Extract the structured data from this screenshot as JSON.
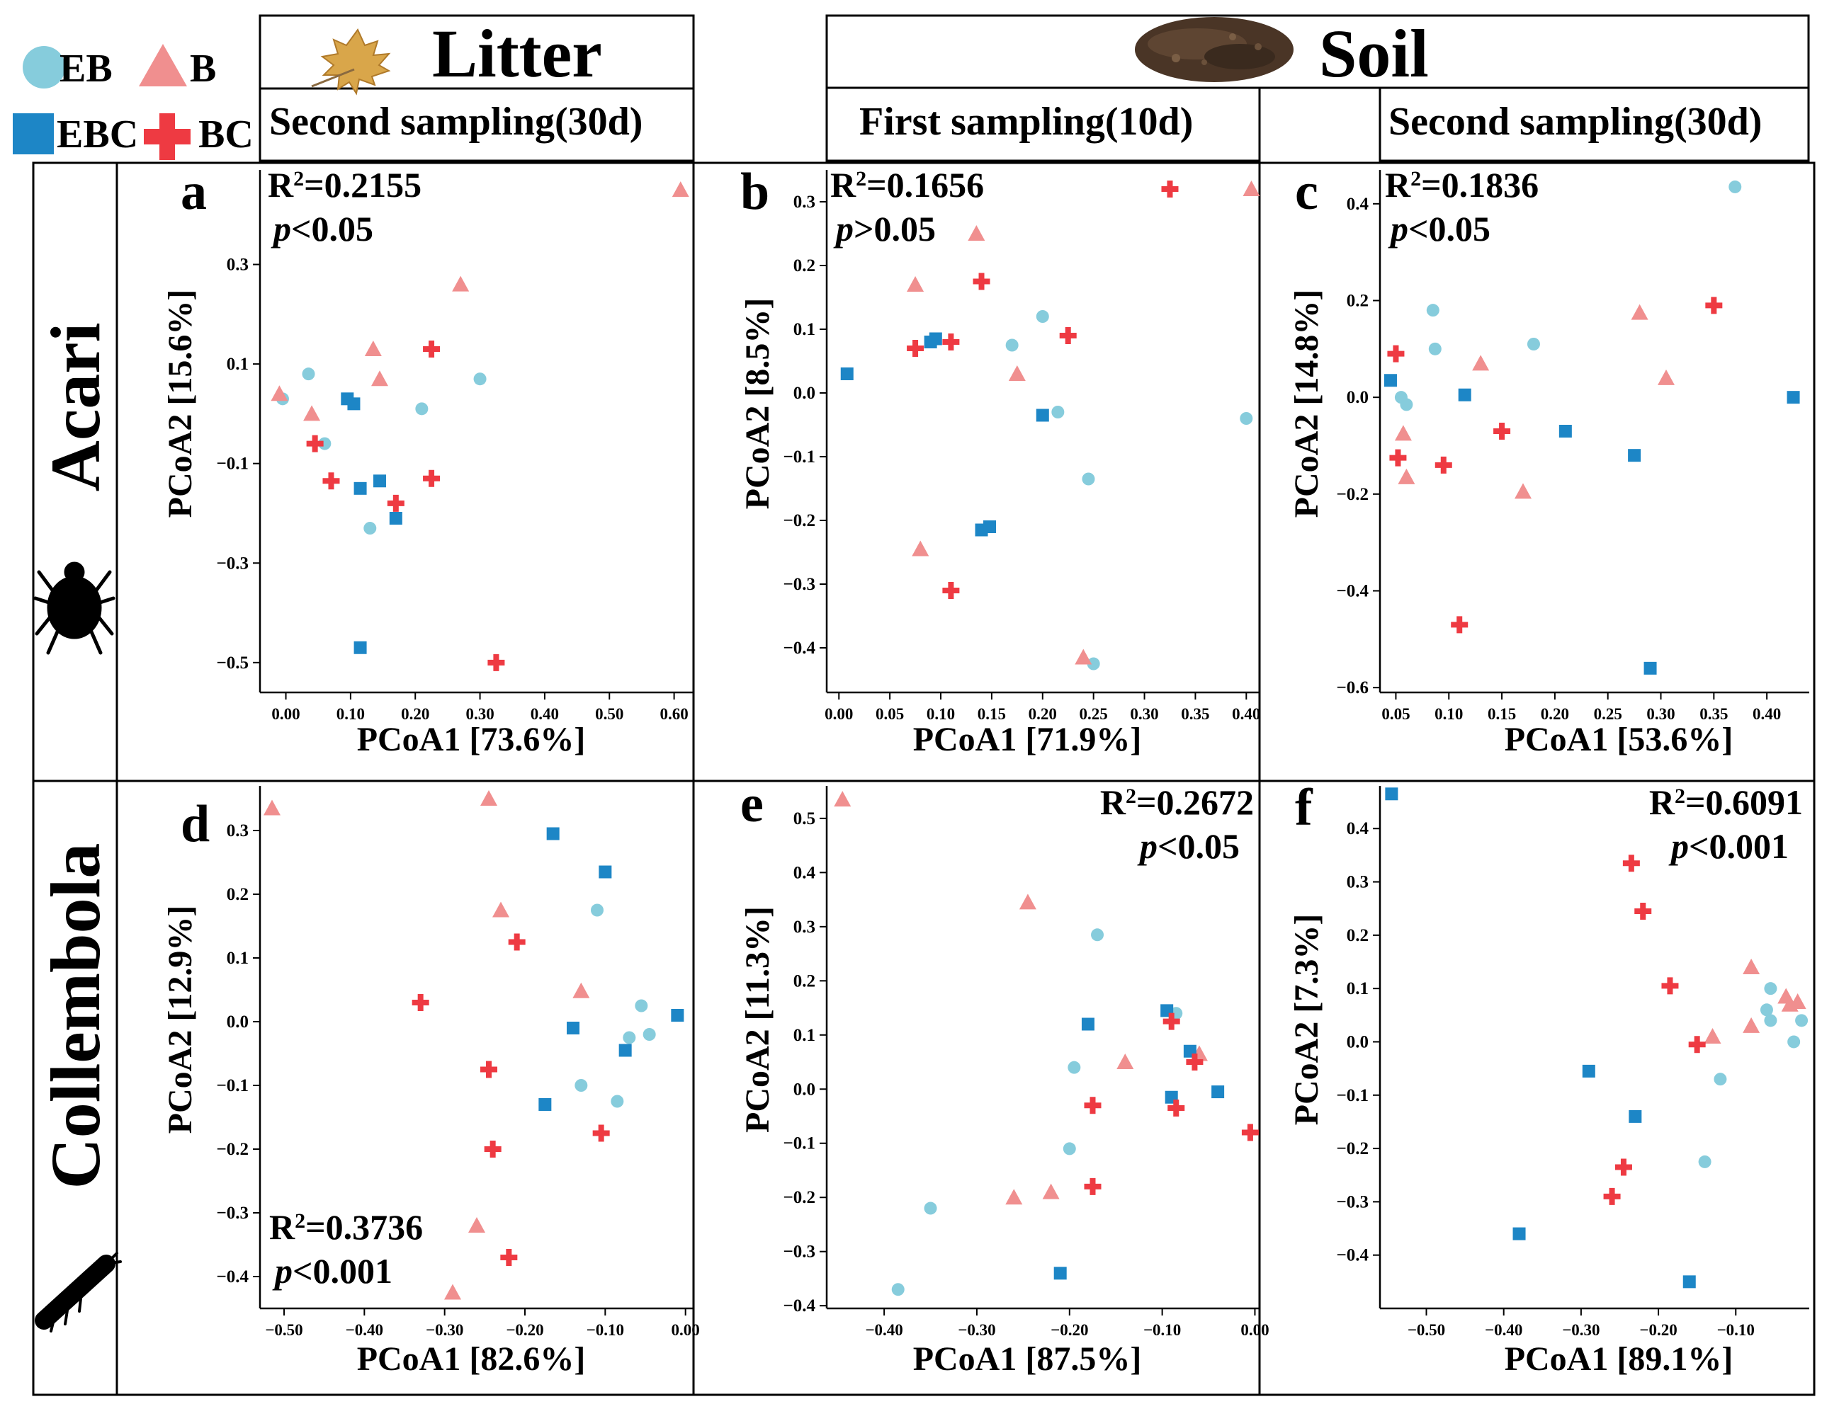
{
  "legend": {
    "items": [
      {
        "label": "EB",
        "marker": "circle",
        "color": "#86ccdc"
      },
      {
        "label": "B",
        "marker": "triangle",
        "color": "#f08f8f"
      },
      {
        "label": "EBC",
        "marker": "square",
        "color": "#1d86c6"
      },
      {
        "label": "BC",
        "marker": "cross",
        "color": "#ee3a42"
      }
    ]
  },
  "headers": {
    "litter": "Litter",
    "soil": "Soil",
    "litter_second": "Second sampling(30d)",
    "soil_first": "First sampling(10d)",
    "soil_second": "Second sampling(30d)"
  },
  "rows": {
    "acari": "Acari",
    "collembola": "Collembola"
  },
  "colors": {
    "EB": "#86ccdc",
    "B": "#f08f8f",
    "EBC": "#1d86c6",
    "BC": "#ee3a42"
  },
  "chart_data": [
    {
      "id": "a",
      "type": "scatter",
      "letter": "a",
      "stats": {
        "r2": "0.2155",
        "p_sym": "<",
        "p_val": "0.05"
      },
      "xlabel": "PCoA1 [73.6%]",
      "ylabel": "PCoA2 [15.6%]",
      "xlim": [
        -0.04,
        0.63
      ],
      "ylim": [
        -0.56,
        0.49
      ],
      "xticks": [
        0.0,
        0.1,
        0.2,
        0.3,
        0.4,
        0.5,
        0.6
      ],
      "xtick_labels": [
        "0.00",
        "0.10",
        "0.20",
        "0.30",
        "0.40",
        "0.50",
        "0.60"
      ],
      "yticks": [
        0.3,
        0.1,
        -0.1,
        -0.3,
        -0.5
      ],
      "ytick_labels": [
        "0.3",
        "0.1",
        "−0.1",
        "−0.3",
        "−0.5"
      ],
      "series": [
        {
          "name": "EB",
          "points": [
            [
              -0.005,
              0.03
            ],
            [
              0.035,
              0.08
            ],
            [
              0.06,
              -0.06
            ],
            [
              0.13,
              -0.23
            ],
            [
              0.21,
              0.01
            ],
            [
              0.3,
              0.07
            ]
          ]
        },
        {
          "name": "B",
          "points": [
            [
              -0.01,
              0.04
            ],
            [
              0.04,
              0.0
            ],
            [
              0.135,
              0.13
            ],
            [
              0.145,
              0.07
            ],
            [
              0.27,
              0.26
            ],
            [
              0.61,
              0.45
            ]
          ]
        },
        {
          "name": "EBC",
          "points": [
            [
              0.095,
              0.03
            ],
            [
              0.105,
              0.02
            ],
            [
              0.115,
              -0.15
            ],
            [
              0.145,
              -0.135
            ],
            [
              0.17,
              -0.21
            ],
            [
              0.115,
              -0.47
            ]
          ]
        },
        {
          "name": "BC",
          "points": [
            [
              0.045,
              -0.06
            ],
            [
              0.07,
              -0.135
            ],
            [
              0.17,
              -0.18
            ],
            [
              0.225,
              -0.13
            ],
            [
              0.225,
              0.13
            ],
            [
              0.325,
              -0.5
            ]
          ]
        }
      ]
    },
    {
      "id": "b",
      "type": "scatter",
      "letter": "b",
      "stats": {
        "r2": "0.1656",
        "p_sym": ">",
        "p_val": "0.05"
      },
      "xlabel": "PCoA1 [71.9%]",
      "ylabel": "PCoA2 [8.5%]",
      "xlim": [
        -0.012,
        0.413
      ],
      "ylim": [
        -0.47,
        0.35
      ],
      "xticks": [
        0.0,
        0.05,
        0.1,
        0.15,
        0.2,
        0.25,
        0.3,
        0.35,
        0.4
      ],
      "xtick_labels": [
        "0.00",
        "0.05",
        "0.10",
        "0.15",
        "0.20",
        "0.25",
        "0.30",
        "0.35",
        "0.40"
      ],
      "yticks": [
        0.3,
        0.2,
        0.1,
        0.0,
        -0.1,
        -0.2,
        -0.3,
        -0.4
      ],
      "ytick_labels": [
        "0.3",
        "0.2",
        "0.1",
        "0.0",
        "−0.1",
        "−0.2",
        "−0.3",
        "−0.4"
      ],
      "series": [
        {
          "name": "EB",
          "points": [
            [
              0.17,
              0.075
            ],
            [
              0.2,
              0.12
            ],
            [
              0.215,
              -0.03
            ],
            [
              0.245,
              -0.135
            ],
            [
              0.25,
              -0.425
            ],
            [
              0.4,
              -0.04
            ]
          ]
        },
        {
          "name": "B",
          "points": [
            [
              0.075,
              0.17
            ],
            [
              0.08,
              -0.245
            ],
            [
              0.135,
              0.25
            ],
            [
              0.175,
              0.03
            ],
            [
              0.24,
              -0.415
            ],
            [
              0.405,
              0.32
            ]
          ]
        },
        {
          "name": "EBC",
          "points": [
            [
              0.008,
              0.03
            ],
            [
              0.09,
              0.08
            ],
            [
              0.095,
              0.085
            ],
            [
              0.14,
              -0.215
            ],
            [
              0.148,
              -0.21
            ],
            [
              0.2,
              -0.035
            ]
          ]
        },
        {
          "name": "BC",
          "points": [
            [
              0.075,
              0.07
            ],
            [
              0.11,
              0.08
            ],
            [
              0.14,
              0.175
            ],
            [
              0.225,
              0.09
            ],
            [
              0.325,
              0.32
            ],
            [
              0.11,
              -0.31
            ]
          ]
        }
      ]
    },
    {
      "id": "c",
      "type": "scatter",
      "letter": "c",
      "stats": {
        "r2": "0.1836",
        "p_sym": "<",
        "p_val": "0.05"
      },
      "xlabel": "PCoA1 [53.6%]",
      "ylabel": "PCoA2 [14.8%]",
      "xlim": [
        0.035,
        0.44
      ],
      "ylim": [
        -0.61,
        0.47
      ],
      "xticks": [
        0.05,
        0.1,
        0.15,
        0.2,
        0.25,
        0.3,
        0.35,
        0.4
      ],
      "xtick_labels": [
        "0.05",
        "0.10",
        "0.15",
        "0.20",
        "0.25",
        "0.30",
        "0.35",
        "0.40"
      ],
      "yticks": [
        0.4,
        0.2,
        0.0,
        -0.2,
        -0.4,
        -0.6
      ],
      "ytick_labels": [
        "0.4",
        "0.2",
        "0.0",
        "−0.2",
        "−0.4",
        "−0.6"
      ],
      "series": [
        {
          "name": "EB",
          "points": [
            [
              0.055,
              0.0
            ],
            [
              0.06,
              -0.015
            ],
            [
              0.085,
              0.18
            ],
            [
              0.087,
              0.1
            ],
            [
              0.18,
              0.11
            ],
            [
              0.37,
              0.435
            ]
          ]
        },
        {
          "name": "B",
          "points": [
            [
              0.057,
              -0.075
            ],
            [
              0.06,
              -0.165
            ],
            [
              0.13,
              0.07
            ],
            [
              0.17,
              -0.195
            ],
            [
              0.28,
              0.175
            ],
            [
              0.305,
              0.04
            ]
          ]
        },
        {
          "name": "EBC",
          "points": [
            [
              0.045,
              0.035
            ],
            [
              0.115,
              0.005
            ],
            [
              0.21,
              -0.07
            ],
            [
              0.275,
              -0.12
            ],
            [
              0.29,
              -0.56
            ],
            [
              0.425,
              0.0
            ]
          ]
        },
        {
          "name": "BC",
          "points": [
            [
              0.05,
              0.09
            ],
            [
              0.052,
              -0.125
            ],
            [
              0.095,
              -0.14
            ],
            [
              0.15,
              -0.07
            ],
            [
              0.35,
              0.19
            ],
            [
              0.11,
              -0.47
            ]
          ]
        }
      ]
    },
    {
      "id": "d",
      "type": "scatter",
      "letter": "d",
      "stats": {
        "r2": "0.3736",
        "p_sym": "<",
        "p_val": "0.001"
      },
      "xlabel": "PCoA1 [82.6%]",
      "ylabel": "PCoA2 [12.9%]",
      "xlim": [
        -0.53,
        0.01
      ],
      "ylim": [
        -0.45,
        0.37
      ],
      "xticks": [
        -0.5,
        -0.4,
        -0.3,
        -0.2,
        -0.1,
        0.0
      ],
      "xtick_labels": [
        "−0.50",
        "−0.40",
        "−0.30",
        "−0.20",
        "−0.10",
        "0.00"
      ],
      "yticks": [
        0.3,
        0.2,
        0.1,
        0.0,
        -0.1,
        -0.2,
        -0.3,
        -0.4
      ],
      "ytick_labels": [
        "0.3",
        "0.2",
        "0.1",
        "0.0",
        "−0.1",
        "−0.2",
        "−0.3",
        "−0.4"
      ],
      "series": [
        {
          "name": "EB",
          "points": [
            [
              -0.11,
              0.175
            ],
            [
              -0.13,
              -0.1
            ],
            [
              -0.085,
              -0.125
            ],
            [
              -0.07,
              -0.025
            ],
            [
              -0.055,
              0.025
            ],
            [
              -0.045,
              -0.02
            ]
          ]
        },
        {
          "name": "B",
          "points": [
            [
              -0.515,
              0.335
            ],
            [
              -0.245,
              0.35
            ],
            [
              -0.23,
              0.175
            ],
            [
              -0.13,
              0.048
            ],
            [
              -0.26,
              -0.32
            ],
            [
              -0.29,
              -0.425
            ]
          ]
        },
        {
          "name": "EBC",
          "points": [
            [
              -0.165,
              0.295
            ],
            [
              -0.1,
              0.235
            ],
            [
              -0.14,
              -0.01
            ],
            [
              -0.175,
              -0.13
            ],
            [
              -0.075,
              -0.045
            ],
            [
              -0.01,
              0.01
            ]
          ]
        },
        {
          "name": "BC",
          "points": [
            [
              -0.33,
              0.03
            ],
            [
              -0.21,
              0.125
            ],
            [
              -0.245,
              -0.075
            ],
            [
              -0.24,
              -0.2
            ],
            [
              -0.105,
              -0.175
            ],
            [
              -0.22,
              -0.37
            ]
          ]
        }
      ]
    },
    {
      "id": "e",
      "type": "scatter",
      "letter": "e",
      "stats": {
        "r2": "0.2672",
        "p_sym": "<",
        "p_val": "0.05"
      },
      "xlabel": "PCoA1 [87.5%]",
      "ylabel": "PCoA2 [11.3%]",
      "xlim": [
        -0.462,
        0.005
      ],
      "ylim": [
        -0.405,
        0.56
      ],
      "xticks": [
        -0.4,
        -0.3,
        -0.2,
        -0.1,
        0.0
      ],
      "xtick_labels": [
        "−0.40",
        "−0.30",
        "−0.20",
        "−0.10",
        "0.00"
      ],
      "yticks": [
        0.5,
        0.4,
        0.3,
        0.2,
        0.1,
        0.0,
        -0.1,
        -0.2,
        -0.3,
        -0.4
      ],
      "ytick_labels": [
        "0.5",
        "0.4",
        "0.3",
        "0.2",
        "0.1",
        "0.0",
        "−0.1",
        "−0.2",
        "−0.3",
        "−0.4"
      ],
      "series": [
        {
          "name": "EB",
          "points": [
            [
              -0.17,
              0.285
            ],
            [
              -0.195,
              0.04
            ],
            [
              -0.2,
              -0.11
            ],
            [
              -0.35,
              -0.22
            ],
            [
              -0.385,
              -0.37
            ],
            [
              -0.085,
              0.14
            ]
          ]
        },
        {
          "name": "B",
          "points": [
            [
              -0.445,
              0.535
            ],
            [
              -0.245,
              0.345
            ],
            [
              -0.14,
              0.05
            ],
            [
              -0.06,
              0.065
            ],
            [
              -0.22,
              -0.19
            ],
            [
              -0.26,
              -0.2
            ]
          ]
        },
        {
          "name": "EBC",
          "points": [
            [
              -0.18,
              0.12
            ],
            [
              -0.095,
              0.145
            ],
            [
              -0.07,
              0.07
            ],
            [
              -0.09,
              -0.015
            ],
            [
              -0.04,
              -0.005
            ],
            [
              -0.21,
              -0.34
            ]
          ]
        },
        {
          "name": "BC",
          "points": [
            [
              -0.09,
              0.125
            ],
            [
              -0.065,
              0.05
            ],
            [
              -0.085,
              -0.035
            ],
            [
              -0.175,
              -0.03
            ],
            [
              -0.175,
              -0.18
            ],
            [
              -0.005,
              -0.08
            ]
          ]
        }
      ]
    },
    {
      "id": "f",
      "type": "scatter",
      "letter": "f",
      "stats": {
        "r2": "0.6091",
        "p_sym": "<",
        "p_val": "0.001"
      },
      "xlabel": "PCoA1 [89.1%]",
      "ylabel": "PCoA2 [7.3%]",
      "xlim": [
        -0.56,
        -0.005
      ],
      "ylim": [
        -0.5,
        0.48
      ],
      "xticks": [
        -0.5,
        -0.4,
        -0.3,
        -0.2,
        -0.1
      ],
      "xtick_labels": [
        "−0.50",
        "−0.40",
        "−0.30",
        "−0.20",
        "−0.10"
      ],
      "yticks": [
        0.4,
        0.3,
        0.2,
        0.1,
        0.0,
        -0.1,
        -0.2,
        -0.3,
        -0.4
      ],
      "ytick_labels": [
        "0.4",
        "0.3",
        "0.2",
        "0.1",
        "0.0",
        "−0.1",
        "−0.2",
        "−0.3",
        "−0.4"
      ],
      "series": [
        {
          "name": "EB",
          "points": [
            [
              -0.055,
              0.1
            ],
            [
              -0.06,
              0.06
            ],
            [
              -0.055,
              0.04
            ],
            [
              -0.015,
              0.04
            ],
            [
              -0.025,
              0.0
            ],
            [
              -0.12,
              -0.07
            ],
            [
              -0.14,
              -0.225
            ]
          ]
        },
        {
          "name": "B",
          "points": [
            [
              -0.08,
              0.14
            ],
            [
              -0.035,
              0.085
            ],
            [
              -0.03,
              0.07
            ],
            [
              -0.02,
              0.075
            ],
            [
              -0.08,
              0.03
            ],
            [
              -0.13,
              0.01
            ]
          ]
        },
        {
          "name": "EBC",
          "points": [
            [
              -0.545,
              0.465
            ],
            [
              -0.29,
              -0.055
            ],
            [
              -0.23,
              -0.14
            ],
            [
              -0.38,
              -0.36
            ],
            [
              -0.16,
              -0.45
            ]
          ]
        },
        {
          "name": "BC",
          "points": [
            [
              -0.235,
              0.335
            ],
            [
              -0.22,
              0.245
            ],
            [
              -0.185,
              0.105
            ],
            [
              -0.15,
              -0.005
            ],
            [
              -0.245,
              -0.235
            ],
            [
              -0.26,
              -0.29
            ]
          ]
        }
      ]
    }
  ]
}
